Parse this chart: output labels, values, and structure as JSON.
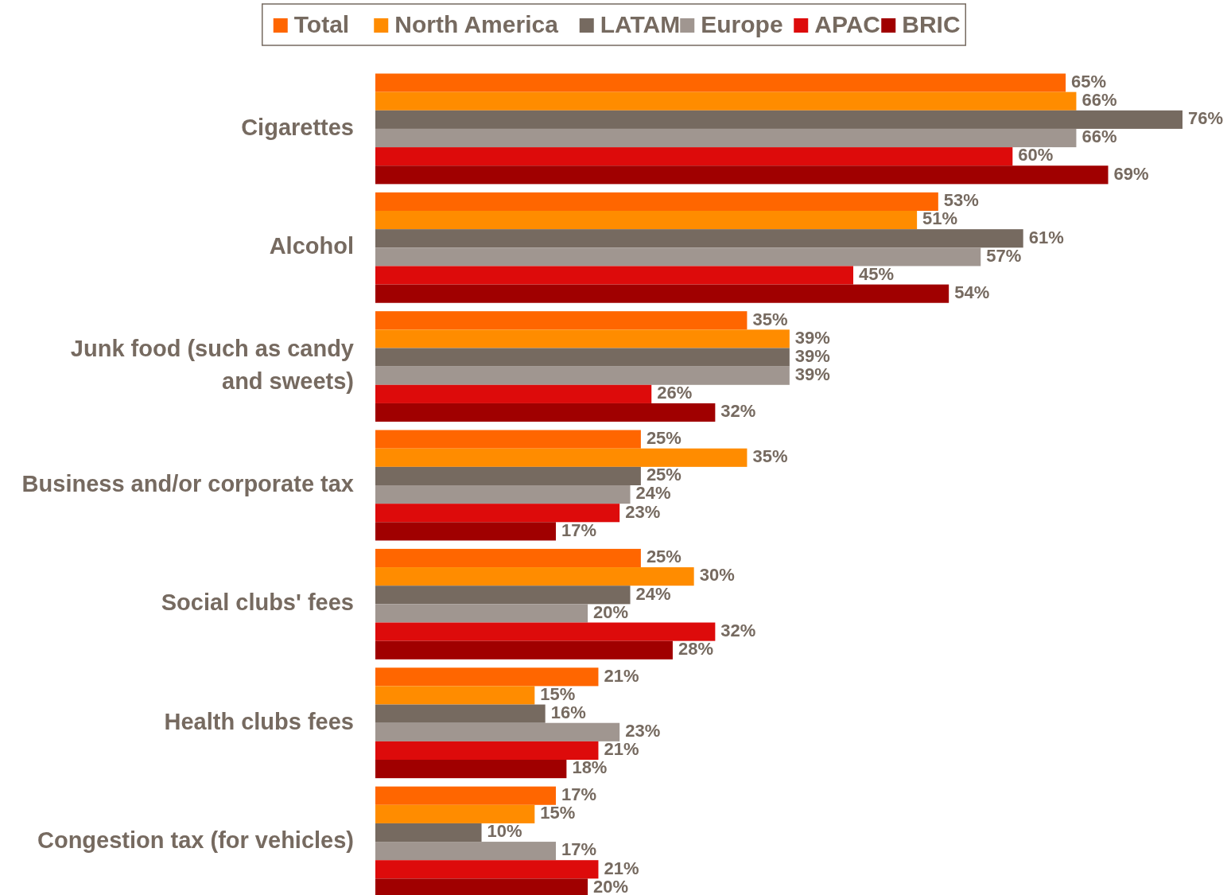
{
  "chart_data": {
    "type": "bar",
    "orientation": "horizontal",
    "legend": "top",
    "categories": [
      "Cigarettes",
      "Alcohol",
      "Junk food (such as candy and sweets)",
      "Business and/or corporate tax",
      "Social clubs' fees",
      "Health clubs fees",
      "Congestion tax (for vehicles)"
    ],
    "series": [
      {
        "name": "Total",
        "color": "#ff6600",
        "values": [
          65,
          53,
          35,
          25,
          25,
          21,
          17
        ],
        "value_labels": [
          "65%",
          "53%",
          "35%",
          "25%",
          "25%",
          "21%",
          "17%"
        ]
      },
      {
        "name": "North America",
        "color": "#ff8c00",
        "values": [
          66,
          51,
          39,
          35,
          30,
          15,
          15
        ],
        "value_labels": [
          "66%",
          "51%",
          "39%",
          "35%",
          "30%",
          "15%",
          "15%"
        ]
      },
      {
        "name": "LATAM",
        "color": "#766a60",
        "values": [
          76,
          61,
          39,
          25,
          24,
          16,
          10
        ],
        "value_labels": [
          "76%",
          "61%",
          "39%",
          "25%",
          "24%",
          "16%",
          "10%"
        ]
      },
      {
        "name": "Europe",
        "color": "#a09690",
        "values": [
          66,
          57,
          39,
          24,
          20,
          23,
          17
        ],
        "value_labels": [
          "66%",
          "57%",
          "39%",
          "24%",
          "20%",
          "23%",
          "17%"
        ]
      },
      {
        "name": "APAC",
        "color": "#dd0b0b",
        "values": [
          60,
          45,
          26,
          23,
          32,
          21,
          21
        ],
        "value_labels": [
          "60%",
          "45%",
          "26%",
          "23%",
          "32%",
          "21%",
          "21%"
        ]
      },
      {
        "name": "BRIC",
        "color": "#a00000",
        "values": [
          69,
          54,
          32,
          17,
          28,
          18,
          20
        ],
        "value_labels": [
          "69%",
          "54%",
          "32%",
          "17%",
          "28%",
          "18%",
          "20%"
        ]
      }
    ]
  }
}
